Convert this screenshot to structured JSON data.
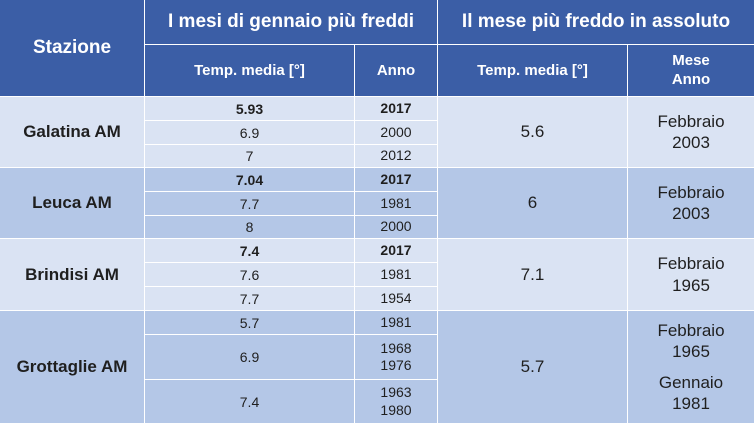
{
  "header": {
    "station": "Stazione",
    "group1": "I mesi di gennaio più freddi",
    "group2": "Il mese più freddo in assoluto",
    "temp1": "Temp. media [°]",
    "year1": "Anno",
    "temp2": "Temp. media [°]",
    "month_year": [
      "Mese",
      "Anno"
    ]
  },
  "stations": [
    {
      "name": "Galatina AM",
      "rows": [
        {
          "temp": 5.93,
          "years": [
            2017
          ],
          "bold": true
        },
        {
          "temp": 6.9,
          "years": [
            2000
          ]
        },
        {
          "temp": 7,
          "years": [
            2012
          ]
        }
      ],
      "record": {
        "temp": 5.6,
        "entries": [
          {
            "month": "Febbraio",
            "year": 2003
          }
        ]
      }
    },
    {
      "name": "Leuca AM",
      "rows": [
        {
          "temp": 7.04,
          "years": [
            2017
          ],
          "bold": true
        },
        {
          "temp": 7.7,
          "years": [
            1981
          ]
        },
        {
          "temp": 8,
          "years": [
            2000
          ]
        }
      ],
      "record": {
        "temp": 6,
        "entries": [
          {
            "month": "Febbraio",
            "year": 2003
          }
        ]
      }
    },
    {
      "name": "Brindisi AM",
      "rows": [
        {
          "temp": 7.4,
          "years": [
            2017
          ],
          "bold": true
        },
        {
          "temp": 7.6,
          "years": [
            1981
          ]
        },
        {
          "temp": 7.7,
          "years": [
            1954
          ]
        }
      ],
      "record": {
        "temp": 7.1,
        "entries": [
          {
            "month": "Febbraio",
            "year": 1965
          }
        ]
      }
    },
    {
      "name": "Grottaglie AM",
      "rows": [
        {
          "temp": 5.7,
          "years": [
            1981
          ]
        },
        {
          "temp": 6.9,
          "years": [
            1968,
            1976
          ]
        },
        {
          "temp": 7.4,
          "years": [
            1963,
            1980
          ]
        }
      ],
      "record": {
        "temp": 5.7,
        "entries": [
          {
            "month": "Febbraio",
            "year": 1965
          },
          {
            "month": "Gennaio",
            "year": 1981
          }
        ]
      }
    }
  ]
}
